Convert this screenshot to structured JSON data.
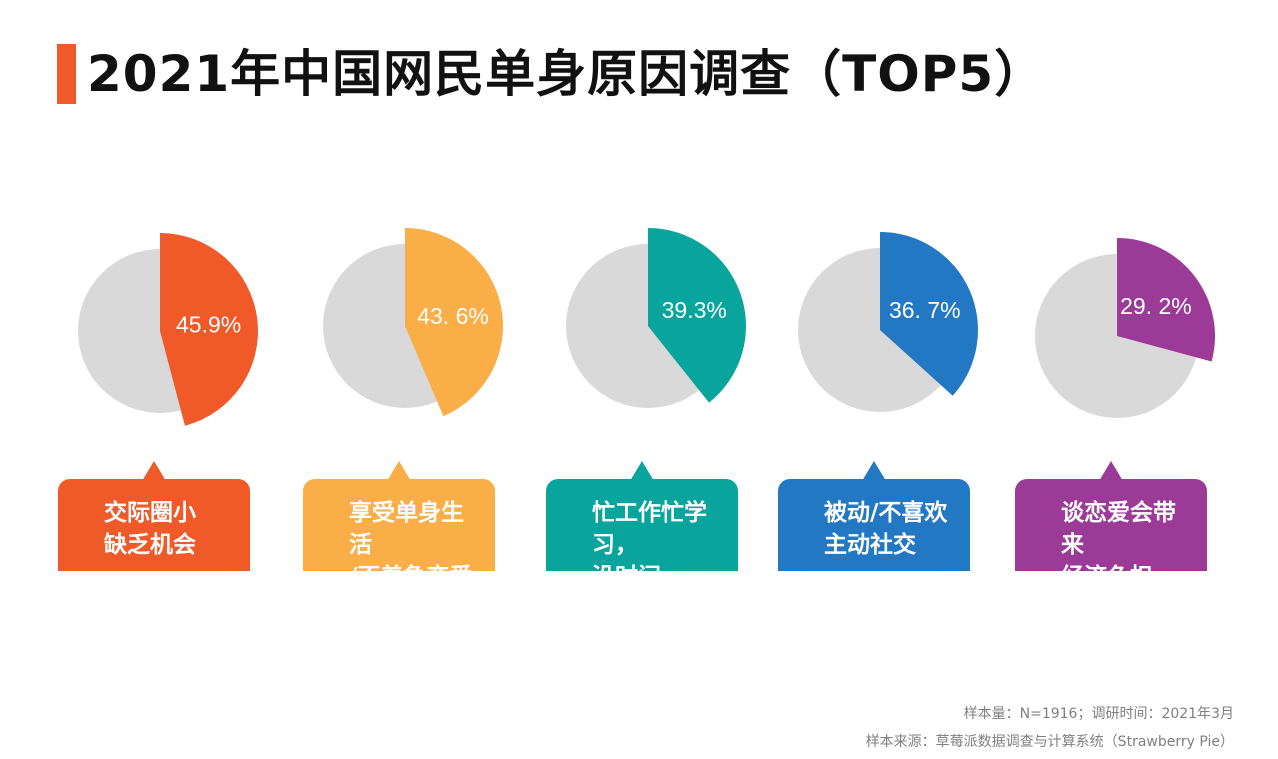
{
  "header": {
    "title": "2021年中国网民单身原因调查（TOP5）"
  },
  "chart_data": {
    "type": "pie",
    "title": "2021年中国网民单身原因调查（TOP5）",
    "series": [
      {
        "name": "交际圈小缺乏机会",
        "label": "交际圈小\n缺乏机会",
        "value": 45.9,
        "value_label": "45.9%",
        "color": "#f05a28"
      },
      {
        "name": "享受单身生活/不着急恋爱",
        "label": "享受单身生活\n/不着急恋爱",
        "value": 43.6,
        "value_label": "43. 6%",
        "color": "#f9ae47"
      },
      {
        "name": "忙工作忙学习，没时间",
        "label": "忙工作忙学习，\n没时间",
        "value": 39.3,
        "value_label": "39.3%",
        "color": "#09a49c"
      },
      {
        "name": "被动/不喜欢主动社交",
        "label": "被动/不喜欢\n主动社交",
        "value": 36.7,
        "value_label": "36. 7%",
        "color": "#2378c3"
      },
      {
        "name": "谈恋爱会带来经济负担",
        "label": "谈恋爱会带来\n经济负担",
        "value": 29.2,
        "value_label": "29. 2%",
        "color": "#9c3a98"
      }
    ],
    "background_color": "#d9d9d9"
  },
  "footer": {
    "sample": "样本量：N=1916；调研时间：2021年3月",
    "source": "样本来源：草莓派数据调查与计算系统（Strawberry Pie）"
  }
}
